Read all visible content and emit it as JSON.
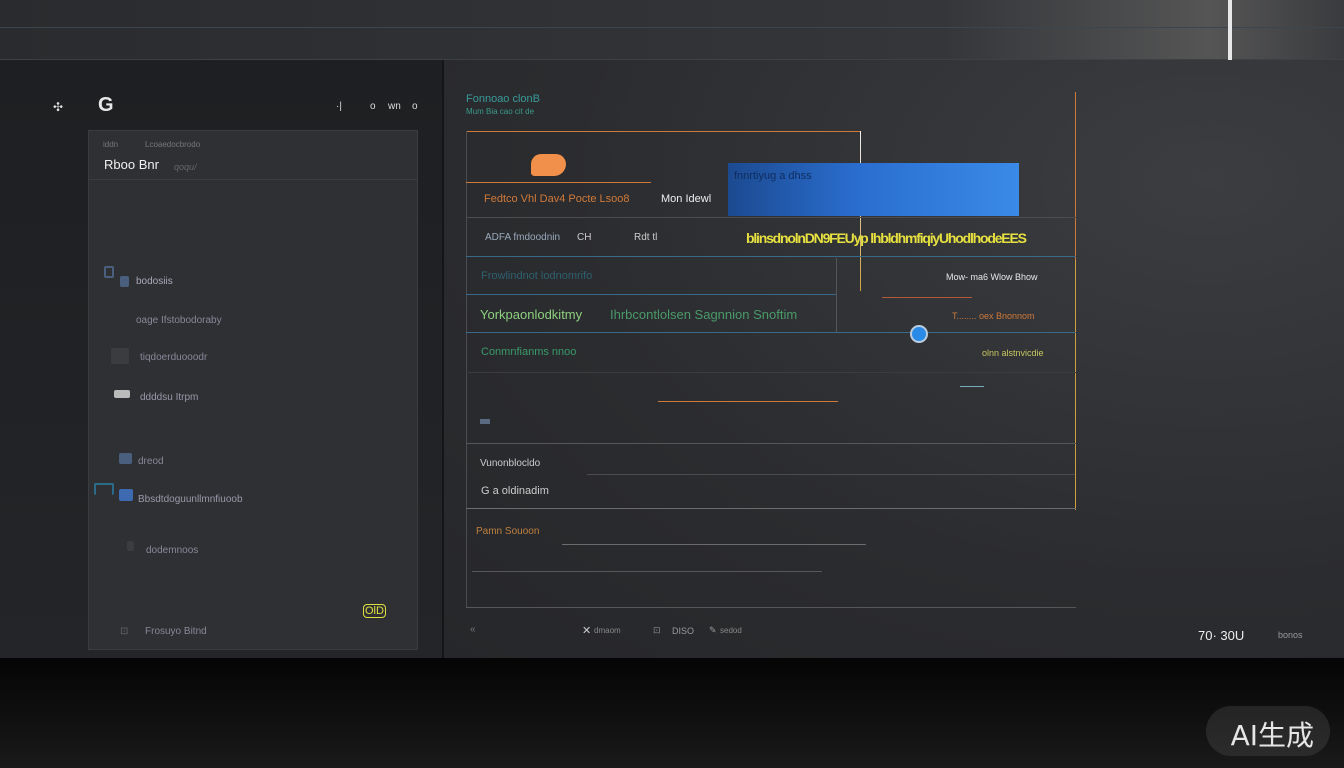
{
  "topbar": {
    "icons": [
      "logo-g-icon",
      "menu-icon"
    ],
    "controls": [
      "·|",
      "o",
      "wn",
      "o"
    ]
  },
  "sidebar": {
    "breadcrumb": [
      "iddn",
      "Lcoaedocbrodo"
    ],
    "title": "Rboo Bnr",
    "subtitle": "qoqu/",
    "items": [
      {
        "label": "bodosiis",
        "icon": "folder-icon"
      },
      {
        "label": "oage Ifstobodoraby",
        "icon": ""
      },
      {
        "label": "tiqdoerduooodr",
        "icon": "square-icon"
      },
      {
        "label": "ddddsu Itrpm",
        "icon": "printer-icon"
      },
      {
        "label": "dreod",
        "icon": "square-icon"
      },
      {
        "label": "Bbsdtdoguunllmnfiuoob",
        "icon": "link-icon"
      },
      {
        "label": "dodemnoos",
        "icon": "file-icon"
      },
      {
        "label": "Frosuyo Bitnd",
        "icon": "settings-icon"
      }
    ],
    "badge": "OlD"
  },
  "main": {
    "title": "Fonnoao clonB",
    "subtitle": "Mum Bia cao cit de",
    "row1": {
      "label": "Fedtco Vhl Dav4 Pocte Lsoo8",
      "value": "Mon Idewl"
    },
    "blue_block_text": "fnnrtiyug a dhss",
    "row2": {
      "label": "ADFA fmdoodnin",
      "col2": "CH",
      "col3": "Rdt tl"
    },
    "yellow_text": "blinsdnolnDN9FEUyp lhbldhmfiqiyUhodlhodeEES",
    "row3": {
      "label": "Frowlindnot lodnomrifo",
      "right": "Mow- ma6 Wlow Bhow"
    },
    "row4": {
      "label": "Yorkpaonlodkitmy",
      "label2": "Ihrbcontlolsen Sagnnion Snoftim",
      "right": "T........ oex Bnonnom"
    },
    "row5": {
      "label": "Conmnfianms nnoo",
      "right": "olnn alstnvicdie"
    },
    "field1": "Vunonblocldo",
    "field2": "G a oldinadim",
    "section_label": "Pamn Souoon",
    "slider_value": 0.4,
    "footer": {
      "back": "«",
      "close": "dmaom",
      "grid": "DISO",
      "edit": "sedod"
    },
    "status": {
      "value": "70· 30U",
      "unit": "bonos"
    }
  },
  "watermark": "AI生成",
  "colors": {
    "orange": "#d07a3a",
    "blue": "#3a8ae0",
    "yellow": "#e6e040",
    "teal": "#3a9a8a",
    "green": "#4aa84a"
  }
}
